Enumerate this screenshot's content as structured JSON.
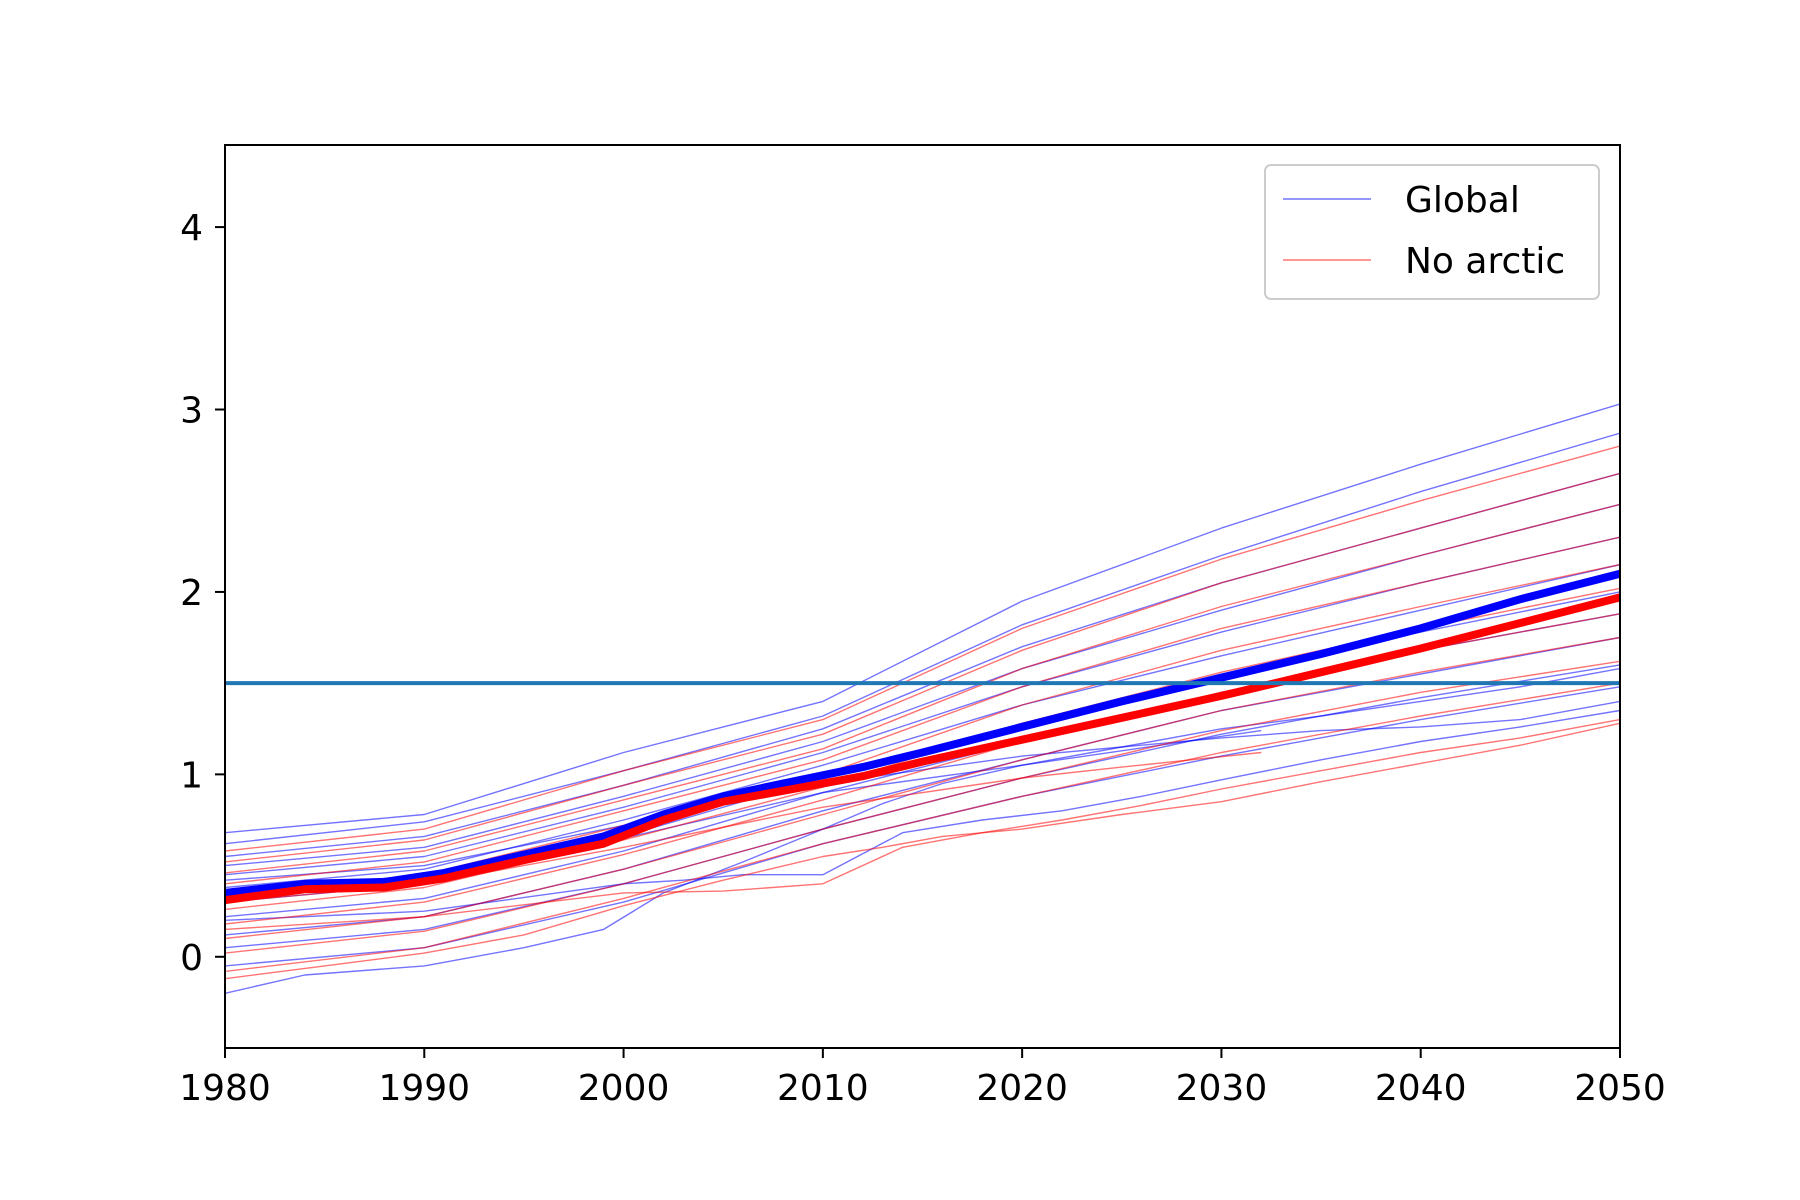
{
  "chart_data": {
    "type": "line",
    "title": "",
    "xlabel": "",
    "ylabel": "",
    "xlim": [
      1980,
      2050
    ],
    "ylim": [
      -0.5,
      4.45
    ],
    "xticks": [
      "1980",
      "1990",
      "2000",
      "2010",
      "2020",
      "2030",
      "2040",
      "2050"
    ],
    "yticks": [
      "0",
      "1",
      "2",
      "3",
      "4"
    ],
    "grid": false,
    "legend": {
      "placement": "top-right",
      "entries": [
        {
          "label": "Global",
          "color": "#0000ff"
        },
        {
          "label": "No arctic",
          "color": "#ff0000"
        }
      ]
    },
    "threshold": {
      "y": 1.5,
      "color": "#1f77b4"
    },
    "series": [
      {
        "group": "Global",
        "role": "mean",
        "color": "#0000ff",
        "x": [
          1980,
          1984,
          1988,
          1991,
          1995,
          1999,
          2002,
          2005,
          2008,
          2012,
          2015,
          2020,
          2025,
          2030,
          2035,
          2040,
          2045,
          2050
        ],
        "y": [
          0.35,
          0.4,
          0.41,
          0.46,
          0.56,
          0.66,
          0.78,
          0.88,
          0.95,
          1.04,
          1.12,
          1.26,
          1.4,
          1.53,
          1.66,
          1.8,
          1.96,
          2.1
        ]
      },
      {
        "group": "No arctic",
        "role": "mean",
        "color": "#ff0000",
        "x": [
          1980,
          1984,
          1988,
          1991,
          1995,
          1999,
          2002,
          2005,
          2008,
          2012,
          2015,
          2020,
          2025,
          2030,
          2035,
          2040,
          2045,
          2050
        ],
        "y": [
          0.31,
          0.37,
          0.38,
          0.43,
          0.53,
          0.62,
          0.75,
          0.85,
          0.91,
          0.99,
          1.07,
          1.19,
          1.31,
          1.43,
          1.56,
          1.69,
          1.83,
          1.97
        ]
      },
      {
        "group": "Global",
        "role": "member",
        "x": [
          1980,
          1990,
          2000,
          2010,
          2020,
          2030,
          2040,
          2050
        ],
        "y": [
          0.68,
          0.78,
          1.12,
          1.4,
          1.95,
          2.35,
          2.7,
          3.03
        ]
      },
      {
        "group": "Global",
        "role": "member",
        "x": [
          1980,
          1990,
          2000,
          2010,
          2020,
          2030,
          2040,
          2050
        ],
        "y": [
          0.62,
          0.74,
          1.02,
          1.32,
          1.82,
          2.2,
          2.55,
          2.87
        ]
      },
      {
        "group": "Global",
        "role": "member",
        "x": [
          1980,
          1990,
          2000,
          2010,
          2020,
          2030,
          2040,
          2050
        ],
        "y": [
          0.55,
          0.66,
          0.94,
          1.25,
          1.7,
          2.05,
          2.35,
          2.65
        ]
      },
      {
        "group": "Global",
        "role": "member",
        "x": [
          1980,
          1990,
          2000,
          2010,
          2020,
          2030,
          2040,
          2050
        ],
        "y": [
          0.5,
          0.6,
          0.88,
          1.18,
          1.58,
          1.9,
          2.2,
          2.48
        ]
      },
      {
        "group": "Global",
        "role": "member",
        "x": [
          1980,
          1990,
          2000,
          2010,
          2020,
          2030,
          2040,
          2050
        ],
        "y": [
          0.45,
          0.55,
          0.82,
          1.12,
          1.48,
          1.78,
          2.05,
          2.3
        ]
      },
      {
        "group": "Global",
        "role": "member",
        "x": [
          1980,
          1990,
          2000,
          2010,
          2020,
          2030,
          2040,
          2050
        ],
        "y": [
          0.38,
          0.48,
          0.75,
          1.05,
          1.38,
          1.65,
          1.9,
          2.15
        ]
      },
      {
        "group": "Global",
        "role": "member",
        "x": [
          1980,
          1990,
          2000,
          2010,
          2020,
          2030,
          2040,
          2050
        ],
        "y": [
          0.3,
          0.4,
          0.66,
          0.98,
          1.28,
          1.55,
          1.78,
          2.0
        ]
      },
      {
        "group": "Global",
        "role": "member",
        "x": [
          1980,
          1990,
          2000,
          2010,
          2020,
          2030,
          2040,
          2050
        ],
        "y": [
          0.22,
          0.32,
          0.58,
          0.9,
          1.18,
          1.45,
          1.68,
          1.88
        ]
      },
      {
        "group": "Global",
        "role": "member",
        "x": [
          1980,
          1990,
          2000,
          2010,
          2020,
          2030,
          2040,
          2050
        ],
        "y": [
          0.12,
          0.22,
          0.48,
          0.8,
          1.08,
          1.35,
          1.55,
          1.75
        ]
      },
      {
        "group": "Global",
        "role": "member",
        "x": [
          1980,
          1990,
          2000,
          2010,
          2020,
          2030,
          2040,
          2050
        ],
        "y": [
          0.05,
          0.15,
          0.4,
          0.7,
          0.98,
          1.22,
          1.42,
          1.6
        ]
      },
      {
        "group": "Global",
        "role": "member",
        "x": [
          1980,
          1990,
          2000,
          2010,
          2020,
          2030,
          2040,
          2050
        ],
        "y": [
          -0.05,
          0.05,
          0.3,
          0.62,
          0.88,
          1.1,
          1.3,
          1.48
        ]
      },
      {
        "group": "Global",
        "role": "member",
        "x": [
          1980,
          1984,
          1990,
          1995,
          1999,
          2002,
          2006,
          2010,
          2013,
          2016,
          2020,
          2025,
          2030,
          2035,
          2040,
          2045,
          2050
        ],
        "y": [
          -0.2,
          -0.1,
          -0.05,
          0.05,
          0.15,
          0.35,
          0.52,
          0.7,
          0.84,
          0.95,
          1.05,
          1.15,
          1.25,
          1.32,
          1.4,
          1.48,
          1.58
        ]
      },
      {
        "group": "Global",
        "role": "member",
        "x": [
          1980,
          1990,
          2000,
          2003,
          2006,
          2010,
          2014,
          2018,
          2022,
          2026,
          2030,
          2035,
          2040,
          2045,
          2050
        ],
        "y": [
          0.2,
          0.25,
          0.4,
          0.42,
          0.45,
          0.45,
          0.68,
          0.75,
          0.8,
          0.88,
          0.97,
          1.08,
          1.18,
          1.26,
          1.35
        ]
      },
      {
        "group": "Global",
        "role": "member",
        "x": [
          1980,
          1990,
          2000,
          2010,
          2020,
          2025,
          2030,
          2035,
          2040,
          2045,
          2050
        ],
        "y": [
          0.42,
          0.5,
          0.72,
          0.95,
          1.1,
          1.15,
          1.2,
          1.24,
          1.26,
          1.3,
          1.4
        ]
      },
      {
        "group": "Global",
        "role": "member",
        "x": [
          1980,
          1990,
          2000,
          2010,
          2020,
          2032
        ],
        "y": [
          0.35,
          0.45,
          0.65,
          0.9,
          1.05,
          1.24
        ]
      },
      {
        "group": "No arctic",
        "role": "member",
        "x": [
          1980,
          1990,
          2000,
          2010,
          2020,
          2030,
          2040,
          2050
        ],
        "y": [
          0.58,
          0.7,
          1.02,
          1.3,
          1.8,
          2.18,
          2.5,
          2.8
        ]
      },
      {
        "group": "No arctic",
        "role": "member",
        "x": [
          1980,
          1990,
          2000,
          2010,
          2020,
          2030,
          2040,
          2050
        ],
        "y": [
          0.52,
          0.64,
          0.94,
          1.22,
          1.68,
          2.05,
          2.35,
          2.65
        ]
      },
      {
        "group": "No arctic",
        "role": "member",
        "x": [
          1980,
          1990,
          2000,
          2010,
          2020,
          2030,
          2040,
          2050
        ],
        "y": [
          0.46,
          0.58,
          0.86,
          1.14,
          1.58,
          1.92,
          2.2,
          2.48
        ]
      },
      {
        "group": "No arctic",
        "role": "member",
        "x": [
          1980,
          1990,
          2000,
          2010,
          2020,
          2030,
          2040,
          2050
        ],
        "y": [
          0.4,
          0.52,
          0.8,
          1.08,
          1.48,
          1.8,
          2.05,
          2.3
        ]
      },
      {
        "group": "No arctic",
        "role": "member",
        "x": [
          1980,
          1990,
          2000,
          2010,
          2020,
          2030,
          2040,
          2050
        ],
        "y": [
          0.34,
          0.45,
          0.72,
          1.0,
          1.38,
          1.68,
          1.92,
          2.15
        ]
      },
      {
        "group": "No arctic",
        "role": "member",
        "x": [
          1980,
          1990,
          2000,
          2010,
          2020,
          2030,
          2040,
          2050
        ],
        "y": [
          0.26,
          0.38,
          0.64,
          0.93,
          1.28,
          1.56,
          1.8,
          2.02
        ]
      },
      {
        "group": "No arctic",
        "role": "member",
        "x": [
          1980,
          1990,
          2000,
          2010,
          2020,
          2030,
          2040,
          2050
        ],
        "y": [
          0.18,
          0.3,
          0.56,
          0.86,
          1.18,
          1.45,
          1.68,
          1.88
        ]
      },
      {
        "group": "No arctic",
        "role": "member",
        "x": [
          1980,
          1990,
          2000,
          2010,
          2020,
          2030,
          2040,
          2050
        ],
        "y": [
          0.1,
          0.22,
          0.48,
          0.78,
          1.08,
          1.35,
          1.56,
          1.75
        ]
      },
      {
        "group": "No arctic",
        "role": "member",
        "x": [
          1980,
          1990,
          2000,
          2010,
          2020,
          2030,
          2040,
          2050
        ],
        "y": [
          0.02,
          0.14,
          0.4,
          0.7,
          0.98,
          1.24,
          1.45,
          1.62
        ]
      },
      {
        "group": "No arctic",
        "role": "member",
        "x": [
          1980,
          1990,
          2000,
          2010,
          2020,
          2030,
          2040,
          2050
        ],
        "y": [
          -0.08,
          0.05,
          0.32,
          0.62,
          0.88,
          1.12,
          1.32,
          1.5
        ]
      },
      {
        "group": "No arctic",
        "role": "member",
        "x": [
          1980,
          1985,
          1990,
          1995,
          2000,
          2005,
          2010,
          2013,
          2016,
          2020,
          2025,
          2030,
          2035,
          2040,
          2045,
          2050
        ],
        "y": [
          -0.12,
          -0.05,
          0.02,
          0.12,
          0.28,
          0.42,
          0.55,
          0.6,
          0.66,
          0.7,
          0.78,
          0.85,
          0.96,
          1.06,
          1.16,
          1.28
        ]
      },
      {
        "group": "No arctic",
        "role": "member",
        "x": [
          1980,
          1990,
          2000,
          2005,
          2010,
          2014,
          2018,
          2022,
          2026,
          2030,
          2035,
          2040,
          2045,
          2050
        ],
        "y": [
          0.15,
          0.22,
          0.35,
          0.36,
          0.4,
          0.6,
          0.68,
          0.75,
          0.83,
          0.92,
          1.02,
          1.12,
          1.2,
          1.3
        ]
      },
      {
        "group": "No arctic",
        "role": "member",
        "x": [
          1980,
          1990,
          2000,
          2010,
          2020,
          2025,
          2032
        ],
        "y": [
          0.3,
          0.4,
          0.6,
          0.82,
          0.98,
          1.04,
          1.12
        ]
      }
    ]
  }
}
